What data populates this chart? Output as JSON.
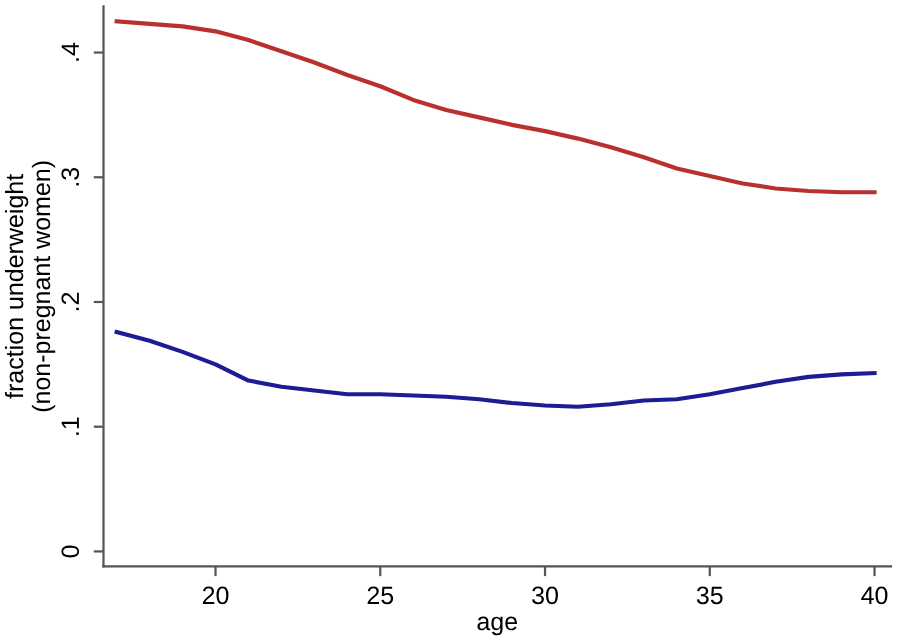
{
  "chart_data": {
    "type": "line",
    "xlabel": "age",
    "ylabel": "fraction underweight\n(non-pregnant women)",
    "xlim": [
      16.6,
      40.5
    ],
    "ylim": [
      -0.012,
      0.437
    ],
    "xticks": [
      20,
      25,
      30,
      35,
      40
    ],
    "yticks": [
      0,
      {
        "value": 0.1,
        "label": ".1"
      },
      {
        "value": 0.2,
        "label": ".2"
      },
      {
        "value": 0.3,
        "label": ".3"
      },
      {
        "value": 0.4,
        "label": ".4"
      }
    ],
    "grid": false,
    "marker": "none",
    "line_style": "solid",
    "series": [
      {
        "color": "#b8312f",
        "x": [
          17,
          18,
          19,
          20,
          21,
          22,
          23,
          24,
          25,
          26,
          27,
          28,
          29,
          30,
          31,
          32,
          33,
          34,
          35,
          36,
          37,
          38,
          39,
          40
        ],
        "values": [
          0.425,
          0.423,
          0.421,
          0.417,
          0.41,
          0.401,
          0.392,
          0.382,
          0.373,
          0.362,
          0.354,
          0.348,
          0.342,
          0.337,
          0.331,
          0.324,
          0.316,
          0.307,
          0.301,
          0.295,
          0.291,
          0.289,
          0.288,
          0.288
        ]
      },
      {
        "color": "#1c1c94",
        "x": [
          17,
          18,
          19,
          20,
          21,
          22,
          23,
          24,
          25,
          26,
          27,
          28,
          29,
          30,
          31,
          32,
          33,
          34,
          35,
          36,
          37,
          38,
          39,
          40
        ],
        "values": [
          0.176,
          0.169,
          0.16,
          0.15,
          0.137,
          0.132,
          0.129,
          0.126,
          0.126,
          0.125,
          0.124,
          0.122,
          0.119,
          0.117,
          0.116,
          0.118,
          0.121,
          0.122,
          0.126,
          0.131,
          0.136,
          0.14,
          0.142,
          0.143
        ]
      }
    ]
  }
}
